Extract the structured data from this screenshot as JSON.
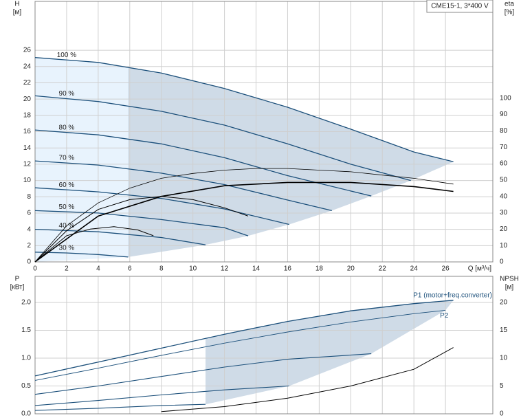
{
  "chart_data": [
    {
      "type": "line",
      "title": "CME15-1, 3*400 V",
      "x_label": "Q [м³/ч]",
      "y_label": "H",
      "y_unit": "[м]",
      "y2_label": "eta",
      "y2_unit": "[%]",
      "xlim": [
        0,
        29
      ],
      "ylim": [
        0,
        32
      ],
      "y2lim": [
        0,
        159
      ],
      "xticks": [
        0,
        2,
        4,
        6,
        8,
        10,
        12,
        14,
        16,
        18,
        20,
        22,
        24,
        26
      ],
      "yticks": [
        0,
        2,
        4,
        6,
        8,
        10,
        12,
        14,
        16,
        18,
        20,
        22,
        24,
        26
      ],
      "y2ticks": [
        0,
        10,
        20,
        30,
        40,
        50,
        60,
        70,
        80,
        90,
        100
      ],
      "grid": true,
      "shade": "full",
      "label_at": "start",
      "series": [
        {
          "name": "100 %",
          "color": "#1b4f7a",
          "width": 1.3,
          "x": [
            0,
            4,
            8,
            12,
            16,
            20,
            24,
            26.5
          ],
          "values": [
            25.1,
            24.5,
            23.2,
            21.3,
            19,
            16.3,
            13.5,
            12.3
          ]
        },
        {
          "name": "90 %",
          "color": "#1b4f7a",
          "width": 1.3,
          "x": [
            0,
            4,
            8,
            12,
            16,
            20,
            23.8
          ],
          "values": [
            20.4,
            19.7,
            18.5,
            16.8,
            14.5,
            12,
            10
          ]
        },
        {
          "name": "80 %",
          "color": "#1b4f7a",
          "width": 1.3,
          "x": [
            0,
            4,
            8,
            12,
            16,
            21.3
          ],
          "values": [
            16.2,
            15.6,
            14.5,
            12.8,
            10.6,
            8.1
          ]
        },
        {
          "name": "70 %",
          "color": "#1b4f7a",
          "width": 1.3,
          "x": [
            0,
            4,
            8,
            12,
            16,
            18.8
          ],
          "values": [
            12.4,
            11.9,
            10.9,
            9.5,
            7.6,
            6.3
          ]
        },
        {
          "name": "60 %",
          "color": "#1b4f7a",
          "width": 1.3,
          "x": [
            0,
            4,
            8,
            12,
            16.1
          ],
          "values": [
            9.1,
            8.6,
            7.8,
            6.5,
            4.6
          ]
        },
        {
          "name": "50 %",
          "color": "#1b4f7a",
          "width": 1.3,
          "x": [
            0,
            4,
            8,
            12,
            13.5
          ],
          "values": [
            6.3,
            6,
            5.2,
            4.2,
            3.2
          ]
        },
        {
          "name": "40 %",
          "color": "#1b4f7a",
          "width": 1.3,
          "x": [
            0,
            4,
            8,
            10.8
          ],
          "values": [
            4,
            3.7,
            3,
            2.1
          ]
        },
        {
          "name": "30 %",
          "color": "#1b4f7a",
          "width": 1.3,
          "x": [
            0,
            2,
            4,
            5.9
          ],
          "values": [
            1.2,
            1.1,
            0.9,
            0.6
          ]
        },
        {
          "axis": "y2",
          "color": "#000000",
          "width": 0.8,
          "x": [
            0,
            2,
            4,
            6,
            8,
            10,
            12,
            14,
            16,
            18,
            20,
            22,
            24,
            26.5
          ],
          "values": [
            0,
            22,
            36,
            45,
            51,
            54,
            56,
            57,
            57,
            56,
            55,
            53,
            51,
            47.5
          ]
        },
        {
          "axis": "y2",
          "color": "#000000",
          "width": 1.6,
          "x": [
            0,
            4,
            8,
            12,
            16,
            20,
            24,
            26.5
          ],
          "values": [
            0,
            28,
            40,
            46.5,
            48.5,
            48.5,
            46,
            43
          ]
        },
        {
          "axis": "y2",
          "color": "#000000",
          "width": 1,
          "x": [
            0,
            2,
            4,
            6,
            8,
            10,
            12,
            13.5
          ],
          "values": [
            0,
            19,
            32,
            38,
            40,
            38,
            33,
            28
          ]
        },
        {
          "axis": "y2",
          "color": "#000000",
          "width": 1,
          "x": [
            0,
            2,
            3.5,
            5,
            6.5,
            7.5
          ],
          "values": [
            0,
            16,
            20,
            21.5,
            19.5,
            16
          ]
        }
      ]
    },
    {
      "type": "line",
      "y_label": "P",
      "y_unit": "[кВт]",
      "y2_label": "NPSH",
      "y2_unit": "[м]",
      "xlim": [
        0,
        29
      ],
      "ylim": [
        0,
        2.47
      ],
      "y2lim": [
        0,
        24.7
      ],
      "xticks": [
        0,
        2,
        4,
        6,
        8,
        10,
        12,
        14,
        16,
        18,
        20,
        22,
        24,
        26
      ],
      "yticks": [
        {
          "value": 0,
          "label": "0.0"
        },
        0.5,
        {
          "value": 1,
          "label": "1.0"
        },
        1.5,
        {
          "value": 2,
          "label": "2.0"
        }
      ],
      "y2ticks": [
        0,
        5,
        10,
        15,
        20
      ],
      "grid": true,
      "shade": "dark",
      "label_at": "end",
      "series": [
        {
          "name": "P1 (motor+freq.converter)",
          "color": "#1b4f7a",
          "width": 1.3,
          "x": [
            0,
            4,
            8,
            12,
            16,
            20,
            24,
            26.5
          ],
          "values": [
            0.68,
            0.93,
            1.18,
            1.43,
            1.66,
            1.85,
            1.98,
            2.04
          ]
        },
        {
          "name": "P2",
          "color": "#1b4f7a",
          "width": 0.9,
          "x": [
            0,
            4,
            8,
            12,
            16,
            20,
            24,
            26
          ],
          "values": [
            0.6,
            0.82,
            1.05,
            1.27,
            1.47,
            1.65,
            1.8,
            1.86
          ]
        },
        {
          "color": "#1b4f7a",
          "width": 1.1,
          "x": [
            0,
            4,
            8,
            12,
            16,
            21.3
          ],
          "values": [
            0.35,
            0.5,
            0.67,
            0.84,
            0.98,
            1.08
          ]
        },
        {
          "color": "#1b4f7a",
          "width": 1.1,
          "x": [
            0,
            4,
            8,
            12,
            16.1
          ],
          "values": [
            0.15,
            0.24,
            0.34,
            0.43,
            0.5
          ]
        },
        {
          "color": "#1b4f7a",
          "width": 1.1,
          "x": [
            0,
            4,
            8,
            10.8
          ],
          "values": [
            0.06,
            0.1,
            0.15,
            0.17
          ]
        },
        {
          "axis": "y2",
          "color": "#000000",
          "width": 1,
          "x": [
            8,
            12,
            16,
            20,
            24,
            26.5
          ],
          "values": [
            0.4,
            1.3,
            2.8,
            5,
            8,
            11.9
          ]
        }
      ]
    }
  ]
}
